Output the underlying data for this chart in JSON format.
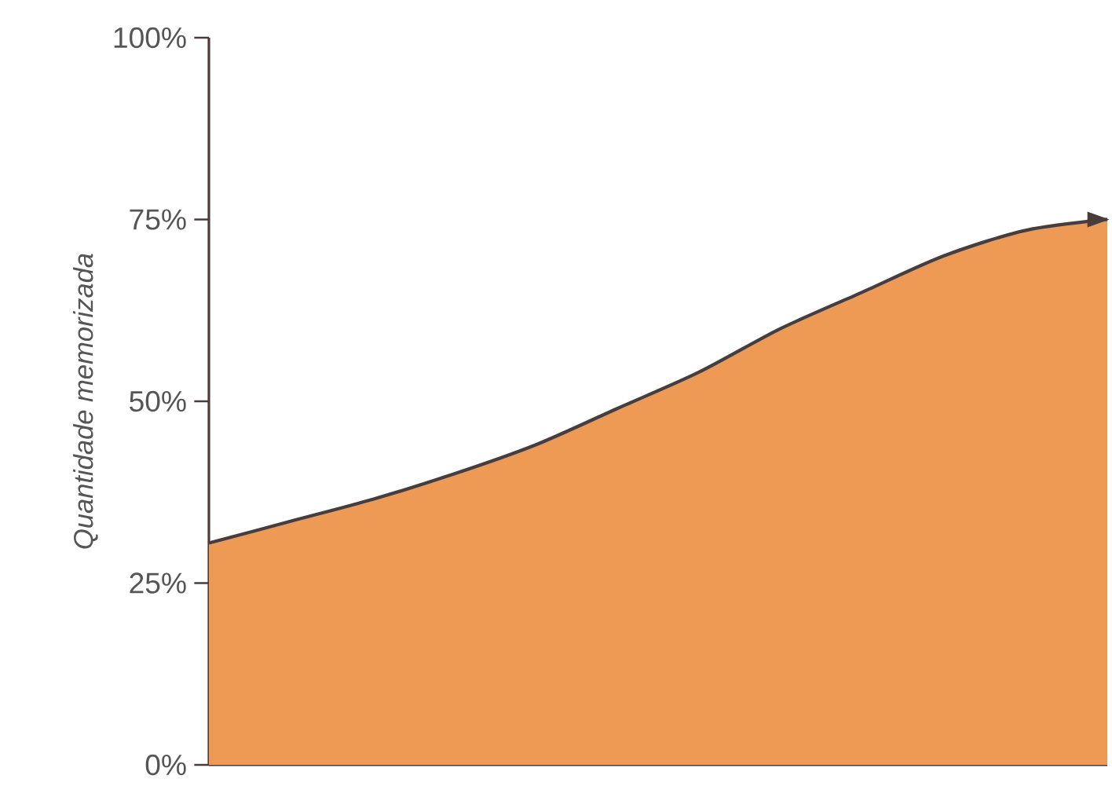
{
  "chart_data": {
    "type": "area",
    "ylabel": "Quantidade memorizada",
    "categories": [
      null,
      null,
      null,
      null,
      null,
      null,
      null,
      null,
      null,
      null,
      null,
      null
    ],
    "series": [
      {
        "color": "#ee9a55",
        "values": [
          30.5,
          33.5,
          36.5,
          40,
          44,
          49,
          54,
          60,
          65,
          70,
          73.5,
          75
        ]
      }
    ],
    "ylim": [
      0,
      100
    ],
    "yticks": [
      {
        "value": 0,
        "label": "0%"
      },
      {
        "value": 25,
        "label": "25%"
      },
      {
        "value": 50,
        "label": "50%"
      },
      {
        "value": 75,
        "label": "75%"
      },
      {
        "value": 100,
        "label": "100%"
      }
    ],
    "grid": false
  }
}
